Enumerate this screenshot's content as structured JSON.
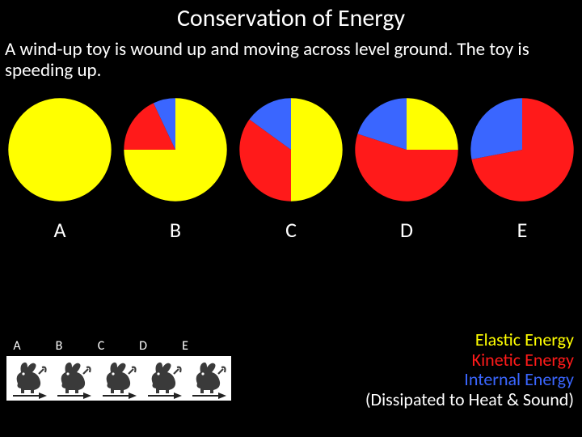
{
  "title": "Conservation of Energy",
  "description": "A wind-up toy is wound up and moving across level ground. The toy is speeding up.",
  "colors": {
    "background": "#000000",
    "text": "#ffffff",
    "elastic": "#ffff00",
    "kinetic": "#ff1a1a",
    "internal": "#3a66ff",
    "bunny_panel": "#ffffff",
    "bunny_fill": "#3a3a3a",
    "arrow_fill": "#222222"
  },
  "pies": [
    {
      "label": "A",
      "slices": [
        {
          "color": "#ffff00",
          "fraction": 1.0
        }
      ]
    },
    {
      "label": "B",
      "slices": [
        {
          "color": "#ffff00",
          "fraction": 0.75
        },
        {
          "color": "#ff1a1a",
          "fraction": 0.18
        },
        {
          "color": "#3a66ff",
          "fraction": 0.07
        }
      ]
    },
    {
      "label": "C",
      "slices": [
        {
          "color": "#ffff00",
          "fraction": 0.5
        },
        {
          "color": "#ff1a1a",
          "fraction": 0.35
        },
        {
          "color": "#3a66ff",
          "fraction": 0.15
        }
      ]
    },
    {
      "label": "D",
      "slices": [
        {
          "color": "#ffff00",
          "fraction": 0.25
        },
        {
          "color": "#ff1a1a",
          "fraction": 0.55
        },
        {
          "color": "#3a66ff",
          "fraction": 0.2
        }
      ]
    },
    {
      "label": "E",
      "slices": [
        {
          "color": "#ff1a1a",
          "fraction": 0.72
        },
        {
          "color": "#3a66ff",
          "fraction": 0.28
        }
      ]
    }
  ],
  "pie_start_angle_deg": -90,
  "small_labels": [
    "A",
    "B",
    "C",
    "D",
    "E"
  ],
  "bunny_count": 5,
  "legend": {
    "elastic": "Elastic Energy",
    "kinetic": "Kinetic Energy",
    "internal": "Internal Energy",
    "dissipated": "(Dissipated to Heat & Sound)"
  },
  "fonts": {
    "title_size": 30,
    "body_size": 23,
    "big_label_size": 26,
    "small_label_size": 16,
    "legend_size": 22
  }
}
